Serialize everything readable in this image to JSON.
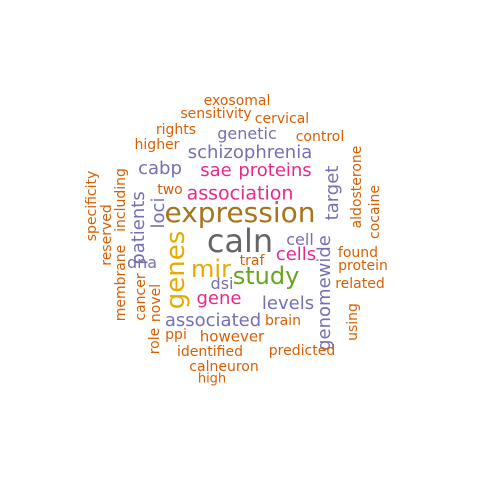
{
  "word_cloud": {
    "colors": {
      "orange": "#d95f02",
      "purple": "#7570b3",
      "magenta": "#e7298a",
      "brown": "#a6761d",
      "gray": "#666666",
      "gold": "#e6ab02",
      "green": "#66a61e"
    },
    "words": [
      "exosomal",
      "sensitivity",
      "cervical",
      "rights",
      "genetic",
      "control",
      "higher",
      "schizophrenia",
      "aldosterone",
      "cabp",
      "sae",
      "proteins",
      "target",
      "cocaine",
      "specificity",
      "two",
      "association",
      "including",
      "loci",
      "expression",
      "reserved",
      "patients",
      "caln",
      "cell",
      "membrane",
      "genes",
      "found",
      "mir",
      "traf",
      "protein",
      "dna",
      "study",
      "cells",
      "genomewide",
      "dsi",
      "related",
      "cancer",
      "gene",
      "levels",
      "novel",
      "associated",
      "brain",
      "using",
      "ppi",
      "however",
      "role",
      "identified",
      "predicted",
      "calneuron",
      "high"
    ]
  }
}
